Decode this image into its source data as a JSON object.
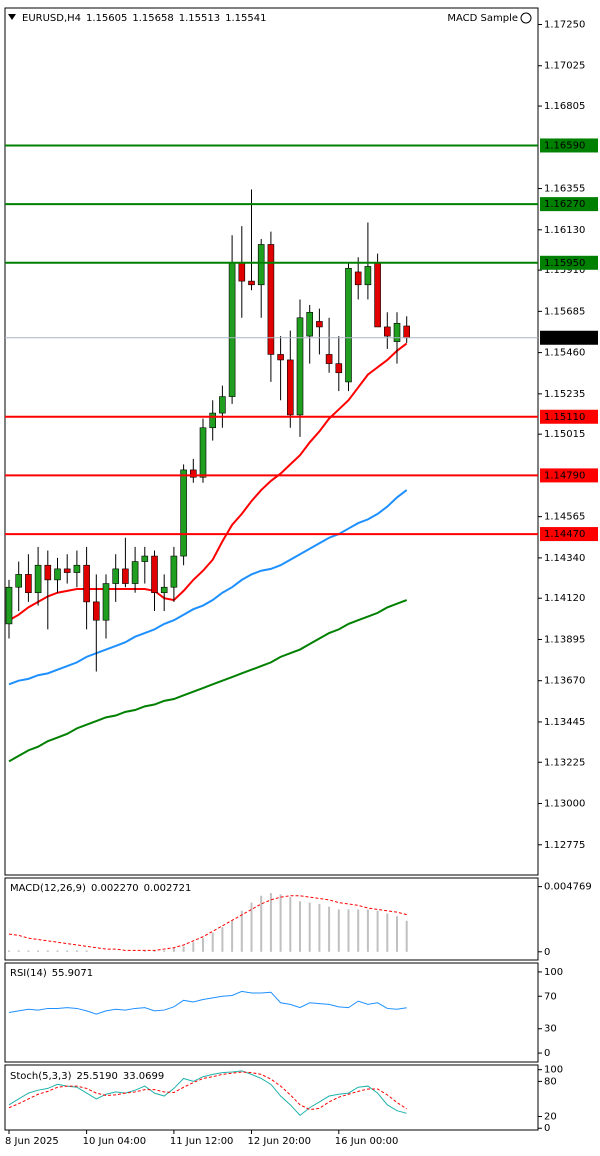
{
  "chart_data": [
    {
      "type": "candlestick",
      "title": "EURUSD,H4",
      "label": "MACD Sample",
      "categories": [
        "8 Jun 2025",
        null,
        null,
        null,
        null,
        null,
        null,
        null,
        "10 Jun 04:00",
        null,
        null,
        null,
        null,
        null,
        null,
        null,
        null,
        "11 Jun 12:00",
        null,
        null,
        null,
        null,
        null,
        null,
        null,
        "12 Jun 20:00",
        null,
        null,
        null,
        null,
        null,
        null,
        null,
        null,
        "16 Jun 00:00",
        null,
        null,
        null,
        null,
        null,
        null,
        null
      ],
      "open": [
        1.1398,
        1.1418,
        1.1425,
        1.1415,
        1.143,
        1.1422,
        1.1428,
        1.1426,
        1.143,
        1.141,
        1.14,
        1.142,
        1.1428,
        1.142,
        1.1432,
        1.1435,
        1.1415,
        1.1418,
        1.1435,
        1.1482,
        1.1478,
        1.1505,
        1.1513,
        1.1522,
        1.1595,
        1.1585,
        1.1583,
        1.1605,
        1.1545,
        1.1542,
        1.1512,
        1.1555,
        1.1563,
        1.1545,
        1.154,
        1.153,
        1.159,
        1.1583,
        1.1595,
        1.156,
        1.1552,
        1.15605
      ],
      "high": [
        1.1422,
        1.1432,
        1.1436,
        1.144,
        1.1438,
        1.1434,
        1.1436,
        1.1438,
        1.144,
        1.1425,
        1.1425,
        1.1436,
        1.1445,
        1.144,
        1.144,
        1.1438,
        1.1425,
        1.144,
        1.1485,
        1.1488,
        1.151,
        1.152,
        1.1528,
        1.161,
        1.1615,
        1.1635,
        1.1608,
        1.1612,
        1.1555,
        1.1558,
        1.1575,
        1.1572,
        1.157,
        1.1565,
        1.1555,
        1.1595,
        1.1598,
        1.1617,
        1.16,
        1.1568,
        1.1568,
        1.15658
      ],
      "low": [
        1.139,
        1.1405,
        1.141,
        1.1408,
        1.1395,
        1.1415,
        1.142,
        1.1418,
        1.1395,
        1.1372,
        1.139,
        1.141,
        1.1418,
        1.1415,
        1.142,
        1.1405,
        1.1405,
        1.141,
        1.143,
        1.1475,
        1.1475,
        1.1498,
        1.1505,
        1.1518,
        1.1565,
        1.158,
        1.1565,
        1.153,
        1.152,
        1.1505,
        1.15,
        1.154,
        1.1545,
        1.1535,
        1.1525,
        1.1525,
        1.1575,
        1.1575,
        1.156,
        1.1548,
        1.154,
        1.15513
      ],
      "close": [
        1.1418,
        1.1425,
        1.1415,
        1.143,
        1.1422,
        1.1428,
        1.1426,
        1.143,
        1.141,
        1.14,
        1.142,
        1.1428,
        1.142,
        1.1432,
        1.1435,
        1.1415,
        1.1418,
        1.1435,
        1.1482,
        1.1478,
        1.1505,
        1.1513,
        1.1522,
        1.1595,
        1.1585,
        1.1583,
        1.1605,
        1.1545,
        1.1542,
        1.1512,
        1.1565,
        1.1568,
        1.156,
        1.154,
        1.1535,
        1.1592,
        1.1583,
        1.1593,
        1.156,
        1.1555,
        1.1562,
        1.15541
      ],
      "up_color": "#1f9e1f",
      "down_color": "#e00000",
      "overlays": [
        {
          "color": "#ff0000",
          "values": [
            1.14,
            1.1403,
            1.1407,
            1.141,
            1.1413,
            1.1415,
            1.1416,
            1.1417,
            1.1417,
            1.1417,
            1.1417,
            1.1417,
            1.1417,
            1.1417,
            1.1417,
            1.1416,
            1.1412,
            1.1411,
            1.1416,
            1.1422,
            1.1427,
            1.1433,
            1.1443,
            1.1452,
            1.1458,
            1.1465,
            1.1471,
            1.1476,
            1.148,
            1.1485,
            1.149,
            1.1497,
            1.1503,
            1.151,
            1.1515,
            1.152,
            1.1527,
            1.1534,
            1.1538,
            1.1542,
            1.1547,
            1.1551
          ]
        },
        {
          "color": "#1e90ff",
          "values": [
            1.1365,
            1.1367,
            1.1368,
            1.137,
            1.1371,
            1.1373,
            1.1375,
            1.1377,
            1.138,
            1.1382,
            1.1384,
            1.1386,
            1.1388,
            1.1391,
            1.1393,
            1.1395,
            1.1398,
            1.14,
            1.1403,
            1.1406,
            1.1408,
            1.1411,
            1.1415,
            1.1418,
            1.1422,
            1.1425,
            1.1427,
            1.1428,
            1.143,
            1.1433,
            1.1436,
            1.1439,
            1.1442,
            1.1445,
            1.1447,
            1.145,
            1.1453,
            1.1455,
            1.1458,
            1.1462,
            1.1467,
            1.1471
          ]
        },
        {
          "color": "#008000",
          "values": [
            1.1323,
            1.1326,
            1.1329,
            1.1331,
            1.1334,
            1.1336,
            1.1338,
            1.1341,
            1.1343,
            1.1345,
            1.1347,
            1.1348,
            1.135,
            1.1351,
            1.1353,
            1.1354,
            1.1356,
            1.1357,
            1.1359,
            1.1361,
            1.1363,
            1.1365,
            1.1367,
            1.1369,
            1.1371,
            1.1373,
            1.1375,
            1.1377,
            1.138,
            1.1382,
            1.1384,
            1.1387,
            1.139,
            1.1393,
            1.1395,
            1.1398,
            1.14,
            1.1402,
            1.1404,
            1.1407,
            1.1409,
            1.1411
          ]
        }
      ],
      "hlines": [
        {
          "value": 1.1659,
          "label": "1.16590",
          "color": "#008000"
        },
        {
          "value": 1.1627,
          "label": "1.16270",
          "color": "#008000"
        },
        {
          "value": 1.1595,
          "label": "1.15950",
          "color": "#008000"
        },
        {
          "value": 1.1511,
          "label": "1.15110",
          "color": "#ff0000"
        },
        {
          "value": 1.1479,
          "label": "1.14790",
          "color": "#ff0000"
        },
        {
          "value": 1.1447,
          "label": "1.14470",
          "color": "#ff0000"
        }
      ],
      "last_price": 1.15541,
      "ylim": [
        1.1261,
        1.1734
      ],
      "yticks": [
        {
          "value": 1.1725,
          "label": "1.17250"
        },
        {
          "value": 1.17025,
          "label": "1.17025"
        },
        {
          "value": 1.16805,
          "label": "1.16805"
        },
        {
          "value": 1.16355,
          "label": "1.16355"
        },
        {
          "value": 1.1613,
          "label": "1.16130"
        },
        {
          "value": 1.1591,
          "label": "1.15910"
        },
        {
          "value": 1.15685,
          "label": "1.15685"
        },
        {
          "value": 1.1546,
          "label": "1.15460"
        },
        {
          "value": 1.15235,
          "label": "1.15235"
        },
        {
          "value": 1.15015,
          "label": "1.15015"
        },
        {
          "value": 1.14565,
          "label": "1.14565"
        },
        {
          "value": 1.1434,
          "label": "1.14340"
        },
        {
          "value": 1.1412,
          "label": "1.14120"
        },
        {
          "value": 1.13895,
          "label": "1.13895"
        },
        {
          "value": 1.1367,
          "label": "1.13670"
        },
        {
          "value": 1.13445,
          "label": "1.13445"
        },
        {
          "value": 1.13225,
          "label": "1.13225"
        },
        {
          "value": 1.13,
          "label": "1.13000"
        },
        {
          "value": 1.12775,
          "label": "1.12775"
        }
      ]
    },
    {
      "type": "macd",
      "title": "MACD(12,26,9)",
      "readout": [
        {
          "value": 0.00227,
          "label": "0.002270"
        },
        {
          "value": 0.002721,
          "label": "0.002721"
        }
      ],
      "values": [
        0.0001,
        0.0001,
        0.0001,
        0.0001,
        0.0001,
        0.0001,
        0.0001,
        0.0001,
        0.0001,
        0,
        0,
        0,
        0,
        0,
        0.0001,
        0.0001,
        0.0001,
        0.0003,
        0.0004,
        0.0007,
        0.001,
        0.0014,
        0.0018,
        0.0023,
        0.003,
        0.0036,
        0.0041,
        0.0043,
        0.0042,
        0.004,
        0.0037,
        0.0036,
        0.0035,
        0.0033,
        0.0031,
        0.0031,
        0.0031,
        0.0031,
        0.003,
        0.0028,
        0.0026,
        0.00227
      ],
      "signal": [
        0.0013,
        0.0012,
        0.001,
        0.0009,
        0.0008,
        0.0007,
        0.0006,
        0.0005,
        0.0004,
        0.0003,
        0.0002,
        0.0002,
        0.0001,
        0.0001,
        0.0001,
        0.0001,
        0.0002,
        0.0003,
        0.0005,
        0.0008,
        0.0011,
        0.0015,
        0.0019,
        0.0023,
        0.0027,
        0.0031,
        0.0035,
        0.0038,
        0.004,
        0.0041,
        0.0041,
        0.004,
        0.0039,
        0.0038,
        0.0036,
        0.0035,
        0.0034,
        0.0032,
        0.0031,
        0.003,
        0.0029,
        0.002721
      ],
      "color": "#c0c0c0",
      "signal_color": "#ff0000",
      "ylim": [
        -0.0006,
        0.0054
      ],
      "yticks": [
        0,
        0.004769
      ]
    },
    {
      "type": "rsi",
      "title": "RSI(14)",
      "readout": [
        55.9071
      ],
      "values": [
        50,
        52,
        54,
        53,
        55,
        55,
        56,
        55,
        52,
        48,
        52,
        54,
        53,
        55,
        56,
        52,
        53,
        57,
        65,
        63,
        66,
        68,
        70,
        71,
        76,
        74,
        74,
        75,
        62,
        60,
        56,
        62,
        61,
        60,
        57,
        56,
        64,
        60,
        62,
        55,
        54,
        55.9071
      ],
      "color": "#1e90ff",
      "ylim": [
        -11,
        111
      ],
      "yticks": [
        0,
        30,
        70,
        100
      ]
    },
    {
      "type": "stoch",
      "title": "Stoch(5,3,3)",
      "readout": [
        {
          "value": 25.519,
          "label": "25.5190"
        },
        33.0699
      ],
      "values": [
        40,
        50,
        60,
        65,
        68,
        75,
        72,
        70,
        60,
        50,
        58,
        62,
        60,
        65,
        72,
        60,
        55,
        68,
        85,
        80,
        88,
        92,
        95,
        96,
        98,
        92,
        85,
        75,
        55,
        40,
        22,
        35,
        45,
        55,
        58,
        60,
        70,
        72,
        60,
        40,
        30,
        25.519
      ],
      "signal": [
        35,
        42,
        50,
        58,
        63,
        70,
        72,
        72,
        68,
        60,
        56,
        57,
        60,
        62,
        66,
        66,
        62,
        61,
        70,
        78,
        85,
        88,
        92,
        94,
        96,
        95,
        92,
        84,
        72,
        57,
        40,
        32,
        34,
        45,
        53,
        58,
        63,
        67,
        67,
        57,
        44,
        33.0699
      ],
      "color": "#20b2aa",
      "signal_color": "#ff0000",
      "ylim": [
        -3,
        108
      ],
      "yticks": [
        0,
        20,
        80,
        100
      ]
    }
  ]
}
